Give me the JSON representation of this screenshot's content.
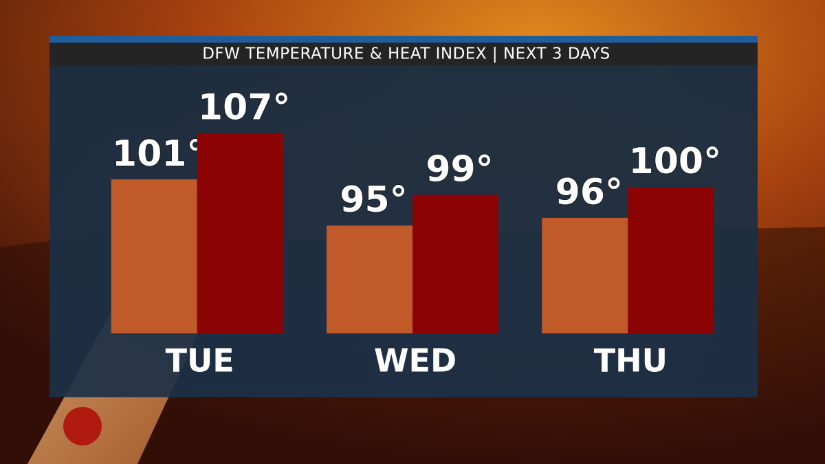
{
  "chart_data": {
    "type": "bar",
    "title": "DFW TEMPERATURE & HEAT INDEX  |  NEXT 3 DAYS",
    "categories": [
      "TUE",
      "WED",
      "THU"
    ],
    "series": [
      {
        "color": "#c05a28",
        "values": [
          101,
          95,
          96
        ],
        "value_labels": [
          "101°",
          "95°",
          "96°"
        ]
      },
      {
        "color": "#8c0303",
        "values": [
          107,
          99,
          100
        ],
        "value_labels": [
          "107°",
          "99°",
          "100°"
        ]
      }
    ],
    "ylim": [
      81,
      110
    ]
  }
}
